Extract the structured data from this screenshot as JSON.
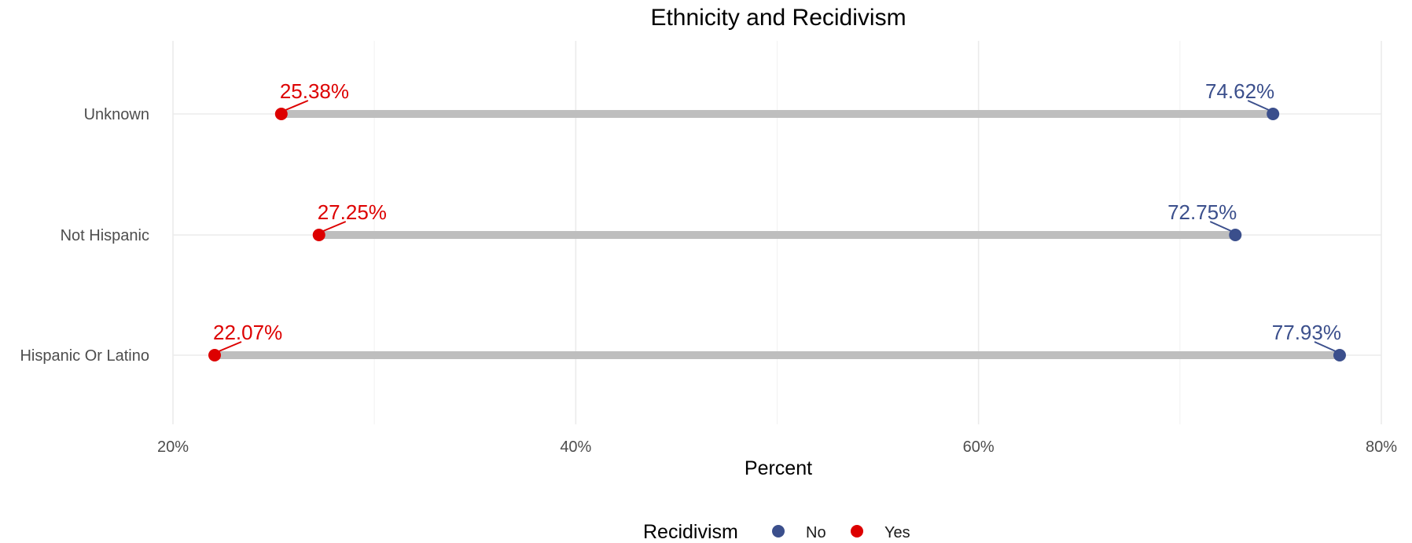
{
  "chart_data": {
    "type": "dumbbell",
    "title": "Ethnicity and Recidivism",
    "xlabel": "Percent",
    "ylabel": "",
    "xlim": [
      20,
      80
    ],
    "x_ticks": [
      20,
      40,
      60,
      80
    ],
    "x_tick_labels": [
      "20%",
      "40%",
      "60%",
      "80%"
    ],
    "grid": true,
    "categories": [
      "Unknown",
      "Not Hispanic",
      "Hispanic Or Latino"
    ],
    "series": [
      {
        "name": "No",
        "color": "#3b4f8c",
        "values": [
          74.62,
          72.75,
          77.93
        ],
        "labels": [
          "74.62%",
          "72.75%",
          "77.93%"
        ]
      },
      {
        "name": "Yes",
        "color": "#dd0000",
        "values": [
          25.38,
          27.25,
          22.07
        ],
        "labels": [
          "25.38%",
          "27.25%",
          "22.07%"
        ]
      }
    ],
    "connector_color": "#bebebe",
    "legend": {
      "title": "Recidivism",
      "position": "bottom",
      "entries": [
        "No",
        "Yes"
      ]
    }
  }
}
